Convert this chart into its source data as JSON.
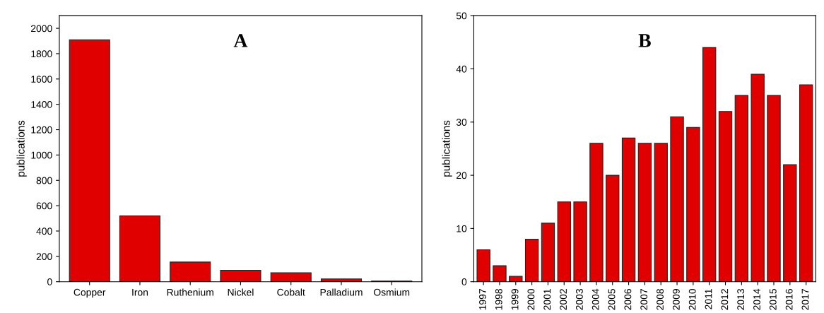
{
  "chart_data": [
    {
      "type": "bar",
      "ylabel": "publications",
      "annotations": [
        "A"
      ],
      "categories": [
        "Copper",
        "Iron",
        "Ruthenium",
        "Nickel",
        "Cobalt",
        "Palladium",
        "Osmium"
      ],
      "values": [
        1910,
        520,
        155,
        90,
        70,
        22,
        5
      ],
      "color": "#e00000",
      "ylim": [
        0,
        2100
      ],
      "yticks": [
        0,
        200,
        400,
        600,
        800,
        1000,
        1200,
        1400,
        1600,
        1800,
        2000
      ],
      "grid": false
    },
    {
      "type": "bar",
      "ylabel": "publications",
      "annotations": [
        "B"
      ],
      "categories": [
        "1997",
        "1998",
        "1999",
        "2000",
        "2001",
        "2002",
        "2003",
        "2004",
        "2005",
        "2006",
        "2007",
        "2008",
        "2009",
        "2010",
        "2011",
        "2012",
        "2013",
        "2014",
        "2015",
        "2016",
        "2017"
      ],
      "values": [
        6,
        3,
        1,
        8,
        11,
        15,
        15,
        26,
        20,
        27,
        26,
        26,
        31,
        29,
        44,
        32,
        35,
        39,
        35,
        22,
        37
      ],
      "color": "#e00000",
      "ylim": [
        0,
        50
      ],
      "yticks": [
        0,
        10,
        20,
        30,
        40,
        50
      ],
      "grid": false
    }
  ]
}
